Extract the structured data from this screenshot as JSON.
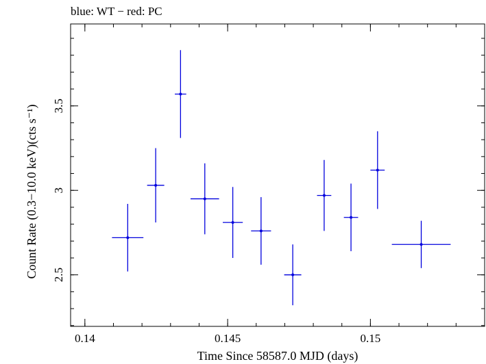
{
  "chart_data": {
    "type": "scatter",
    "title": "blue: WT − red: PC",
    "xlabel": "Time Since 58587.0 MJD (days)",
    "ylabel": "Count Rate (0.3−10.0 keV)(cts s⁻¹)",
    "xlim": [
      0.1395,
      0.154
    ],
    "ylim": [
      2.195,
      3.985
    ],
    "x_ticks": [
      {
        "value": 0.14,
        "label": "0.14"
      },
      {
        "value": 0.145,
        "label": "0.145"
      },
      {
        "value": 0.15,
        "label": "0.15"
      }
    ],
    "y_ticks": [
      {
        "value": 2.5,
        "label": "2.5"
      },
      {
        "value": 3.0,
        "label": "3"
      },
      {
        "value": 3.5,
        "label": "3.5"
      }
    ],
    "x_minor_step": 0.001,
    "y_minor_step": 0.1,
    "grid": false,
    "series": [
      {
        "name": "WT",
        "color": "#0000dd",
        "points": [
          {
            "x": 0.1415,
            "y": 2.72,
            "xerr": 0.00055,
            "yerr_low": 0.2,
            "yerr_high": 0.2
          },
          {
            "x": 0.14248,
            "y": 3.03,
            "xerr": 0.0003,
            "yerr_low": 0.22,
            "yerr_high": 0.22
          },
          {
            "x": 0.14335,
            "y": 3.57,
            "xerr": 0.0002,
            "yerr_low": 0.26,
            "yerr_high": 0.26
          },
          {
            "x": 0.1442,
            "y": 2.95,
            "xerr": 0.0005,
            "yerr_low": 0.21,
            "yerr_high": 0.21
          },
          {
            "x": 0.14518,
            "y": 2.81,
            "xerr": 0.00035,
            "yerr_low": 0.21,
            "yerr_high": 0.21
          },
          {
            "x": 0.14617,
            "y": 2.76,
            "xerr": 0.00035,
            "yerr_low": 0.2,
            "yerr_high": 0.2
          },
          {
            "x": 0.14728,
            "y": 2.5,
            "xerr": 0.0003,
            "yerr_low": 0.18,
            "yerr_high": 0.18
          },
          {
            "x": 0.14838,
            "y": 2.97,
            "xerr": 0.00025,
            "yerr_low": 0.21,
            "yerr_high": 0.21
          },
          {
            "x": 0.14932,
            "y": 2.84,
            "xerr": 0.00025,
            "yerr_low": 0.2,
            "yerr_high": 0.2
          },
          {
            "x": 0.15025,
            "y": 3.12,
            "xerr": 0.00025,
            "yerr_low": 0.23,
            "yerr_high": 0.23
          },
          {
            "x": 0.15178,
            "y": 2.68,
            "xerr": 0.00103,
            "yerr_low": 0.14,
            "yerr_high": 0.14
          }
        ]
      }
    ]
  }
}
